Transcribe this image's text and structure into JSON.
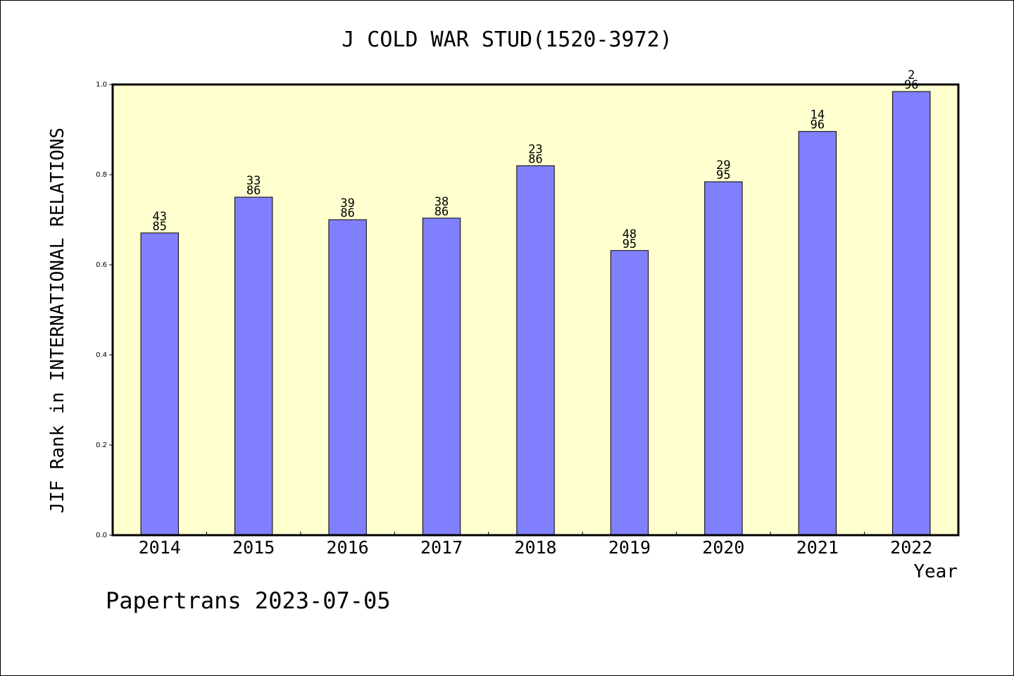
{
  "chart_data": {
    "type": "bar",
    "title": "J COLD WAR STUD(1520-3972)",
    "ylabel": "JIF Rank in INTERNATIONAL RELATIONS",
    "xlabel": "Year",
    "footer": "Papertrans 2023-07-05",
    "categories": [
      "2014",
      "2015",
      "2016",
      "2017",
      "2018",
      "2019",
      "2020",
      "2021",
      "2022"
    ],
    "values": [
      0.6706,
      0.75,
      0.7,
      0.7035,
      0.8198,
      0.6316,
      0.7842,
      0.8958,
      0.9844
    ],
    "labels": [
      [
        "43",
        "85"
      ],
      [
        "33",
        "86"
      ],
      [
        "39",
        "86"
      ],
      [
        "38",
        "86"
      ],
      [
        "23",
        "86"
      ],
      [
        "48",
        "95"
      ],
      [
        "29",
        "95"
      ],
      [
        "14",
        "96"
      ],
      [
        "2",
        "96"
      ]
    ],
    "ylim": [
      0,
      1.0
    ],
    "yticks": [
      "0.0",
      "0.2",
      "0.4",
      "0.6",
      "0.8",
      "1.0"
    ],
    "grid": false,
    "colors": {
      "bar": "#8080ff",
      "plot_bg": "#ffffd0",
      "axis": "#000000"
    }
  }
}
